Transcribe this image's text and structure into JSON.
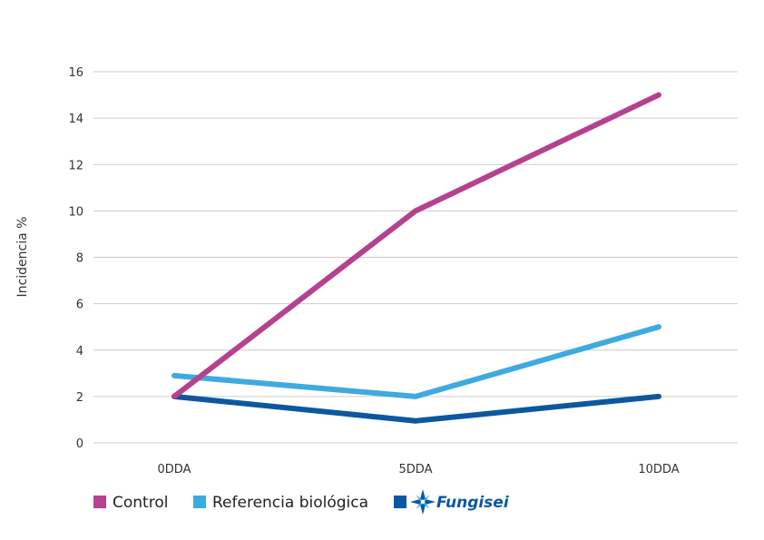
{
  "chart_data": {
    "type": "line",
    "ylabel": "Incidencia %",
    "xlabel": "",
    "categories": [
      "0DDA",
      "5DDA",
      "10DDA"
    ],
    "ylim": [
      0,
      16
    ],
    "yticks": [
      0,
      2,
      4,
      6,
      8,
      10,
      12,
      14,
      16
    ],
    "grid": true,
    "legend_position": "bottom-left",
    "series": [
      {
        "name": "Control",
        "values": [
          2,
          10,
          15
        ],
        "color": "#b5418f"
      },
      {
        "name": "Referencia biológica",
        "values": [
          2.9,
          2,
          5
        ],
        "color": "#3eaadf"
      },
      {
        "name": "Fungisei",
        "values": [
          2,
          0.95,
          2
        ],
        "color": "#0b58a0",
        "legend_is_logo": true
      }
    ]
  }
}
